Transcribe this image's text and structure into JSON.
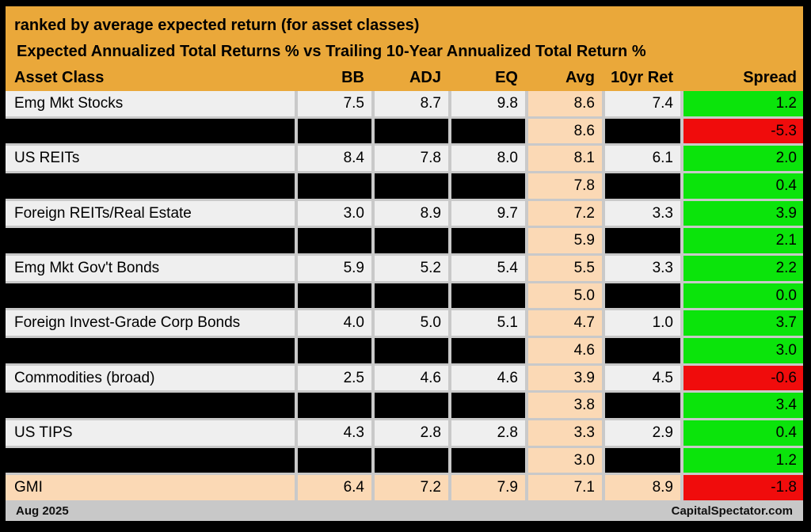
{
  "title": "ranked by average expected return (for asset classes)",
  "subtitle": "Expected Annualized Total Returns % vs Trailing 10-Year Annualized Total Return %",
  "columns": [
    "Asset Class",
    "BB",
    "ADJ",
    "EQ",
    "Avg",
    "10yr Ret",
    "Spread"
  ],
  "rows": [
    {
      "asset": "Emg Mkt Stocks",
      "bb": "7.5",
      "adj": "8.7",
      "eq": "9.8",
      "avg": "8.6",
      "ret10": "7.4",
      "spread": "1.2",
      "spread_color": "green",
      "redacted": false
    },
    {
      "redacted": true,
      "avg": "8.6",
      "spread": "-5.3",
      "spread_color": "red"
    },
    {
      "asset": "US REITs",
      "bb": "8.4",
      "adj": "7.8",
      "eq": "8.0",
      "avg": "8.1",
      "ret10": "6.1",
      "spread": "2.0",
      "spread_color": "green",
      "redacted": false
    },
    {
      "redacted": true,
      "avg": "7.8",
      "spread": "0.4",
      "spread_color": "green"
    },
    {
      "asset": "Foreign REITs/Real Estate",
      "bb": "3.0",
      "adj": "8.9",
      "eq": "9.7",
      "avg": "7.2",
      "ret10": "3.3",
      "spread": "3.9",
      "spread_color": "green",
      "redacted": false
    },
    {
      "redacted": true,
      "avg": "5.9",
      "spread": "2.1",
      "spread_color": "green"
    },
    {
      "asset": "Emg Mkt Gov't Bonds",
      "bb": "5.9",
      "adj": "5.2",
      "eq": "5.4",
      "avg": "5.5",
      "ret10": "3.3",
      "spread": "2.2",
      "spread_color": "green",
      "redacted": false
    },
    {
      "redacted": true,
      "avg": "5.0",
      "spread": "0.0",
      "spread_color": "green"
    },
    {
      "asset": "Foreign Invest-Grade Corp Bonds",
      "bb": "4.0",
      "adj": "5.0",
      "eq": "5.1",
      "avg": "4.7",
      "ret10": "1.0",
      "spread": "3.7",
      "spread_color": "green",
      "redacted": false
    },
    {
      "redacted": true,
      "avg": "4.6",
      "spread": "3.0",
      "spread_color": "green"
    },
    {
      "asset": "Commodities (broad)",
      "bb": "2.5",
      "adj": "4.6",
      "eq": "4.6",
      "avg": "3.9",
      "ret10": "4.5",
      "spread": "-0.6",
      "spread_color": "red",
      "redacted": false
    },
    {
      "redacted": true,
      "avg": "3.8",
      "spread": "3.4",
      "spread_color": "green"
    },
    {
      "asset": "US TIPS",
      "bb": "4.3",
      "adj": "2.8",
      "eq": "2.8",
      "avg": "3.3",
      "ret10": "2.9",
      "spread": "0.4",
      "spread_color": "green",
      "redacted": false
    },
    {
      "redacted": true,
      "avg": "3.0",
      "spread": "1.2",
      "spread_color": "green"
    },
    {
      "asset": "GMI",
      "bb": "6.4",
      "adj": "7.2",
      "eq": "7.9",
      "avg": "7.1",
      "ret10": "8.9",
      "spread": "-1.8",
      "spread_color": "red",
      "redacted": false,
      "highlight": true
    }
  ],
  "footer": {
    "left": "Aug 2025",
    "right": "CapitalSpectator.com"
  },
  "colors": {
    "header_bg": "#EAA83A",
    "avg_column_bg": "#FBD9B5",
    "spread_positive_bg": "#0BE40B",
    "spread_negative_bg": "#F00C0C",
    "row_bg": "#EFEFEF",
    "grid_line": "#C9C9C9",
    "footer_bg": "#C8C8C8",
    "redacted_bg": "#000000"
  },
  "chart_data": {
    "type": "table",
    "title": "ranked by average expected return (for asset classes)",
    "subtitle": "Expected Annualized Total Returns % vs Trailing 10-Year Annualized Total Return %",
    "columns": [
      "Asset Class",
      "BB",
      "ADJ",
      "EQ",
      "Avg",
      "10yr Ret",
      "Spread"
    ],
    "rows": [
      [
        "Emg Mkt Stocks",
        7.5,
        8.7,
        9.8,
        8.6,
        7.4,
        1.2
      ],
      [
        "[redacted]",
        null,
        null,
        null,
        8.6,
        null,
        -5.3
      ],
      [
        "US REITs",
        8.4,
        7.8,
        8.0,
        8.1,
        6.1,
        2.0
      ],
      [
        "[redacted]",
        null,
        null,
        null,
        7.8,
        null,
        0.4
      ],
      [
        "Foreign REITs/Real Estate",
        3.0,
        8.9,
        9.7,
        7.2,
        3.3,
        3.9
      ],
      [
        "[redacted]",
        null,
        null,
        null,
        5.9,
        null,
        2.1
      ],
      [
        "Emg Mkt Gov't Bonds",
        5.9,
        5.2,
        5.4,
        5.5,
        3.3,
        2.2
      ],
      [
        "[redacted]",
        null,
        null,
        null,
        5.0,
        null,
        0.0
      ],
      [
        "Foreign Invest-Grade Corp Bonds",
        4.0,
        5.0,
        5.1,
        4.7,
        1.0,
        3.7
      ],
      [
        "[redacted]",
        null,
        null,
        null,
        4.6,
        null,
        3.0
      ],
      [
        "Commodities (broad)",
        2.5,
        4.6,
        4.6,
        3.9,
        4.5,
        -0.6
      ],
      [
        "[redacted]",
        null,
        null,
        null,
        3.8,
        null,
        3.4
      ],
      [
        "US TIPS",
        4.3,
        2.8,
        2.8,
        3.3,
        2.9,
        0.4
      ],
      [
        "[redacted]",
        null,
        null,
        null,
        3.0,
        null,
        1.2
      ],
      [
        "GMI",
        6.4,
        7.2,
        7.9,
        7.1,
        8.9,
        -1.8
      ]
    ],
    "notes": "Spread cell color: green = positive, red = negative; Avg column shaded peach; alternating rows blacked out except Avg and Spread values; GMI row shaded peach"
  }
}
